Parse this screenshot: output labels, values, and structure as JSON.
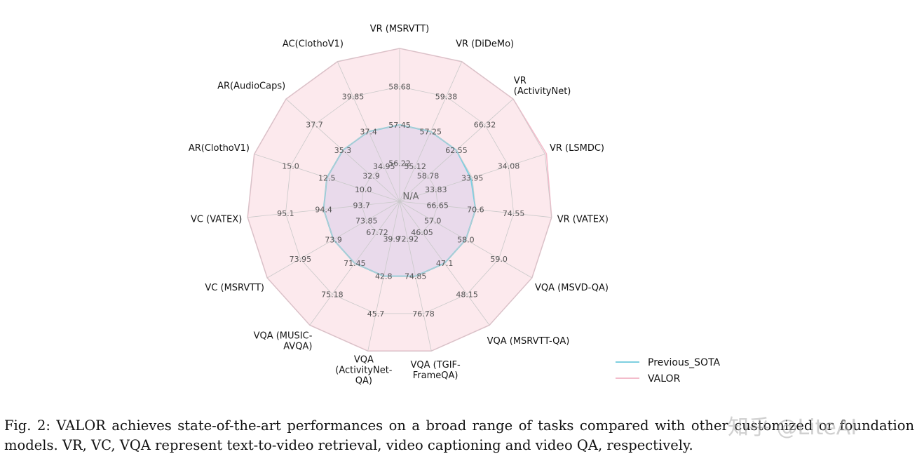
{
  "chart_data": {
    "type": "radar",
    "center_label": "N/A",
    "axes": [
      {
        "label": [
          "VR (MSRVTT)"
        ],
        "ticks": [
          "56.22",
          "57.45",
          "58.68"
        ]
      },
      {
        "label": [
          "VR (DiDeMo)"
        ],
        "ticks": [
          "55.12",
          "57.25",
          "59.38"
        ]
      },
      {
        "label": [
          "VR",
          "(ActivityNet)"
        ],
        "ticks": [
          "58.78",
          "62.55",
          "66.32"
        ]
      },
      {
        "label": [
          "VR (LSMDC)"
        ],
        "ticks": [
          "33.83",
          "33.95",
          "34.08"
        ]
      },
      {
        "label": [
          "VR (VATEX)"
        ],
        "ticks": [
          "66.65",
          "70.6",
          "74.55"
        ]
      },
      {
        "label": [
          "VQA (MSVD-QA)"
        ],
        "ticks": [
          "57.0",
          "58.0",
          "59.0"
        ]
      },
      {
        "label": [
          "VQA (MSRVTT-QA)"
        ],
        "ticks": [
          "46.05",
          "47.1",
          "48.15"
        ]
      },
      {
        "label": [
          "VQA (TGIF-",
          "FrameQA)"
        ],
        "ticks": [
          "72.92",
          "74.85",
          "76.78"
        ]
      },
      {
        "label": [
          "VQA",
          "(ActivityNet-",
          "QA)"
        ],
        "ticks": [
          "39.9",
          "42.8",
          "45.7"
        ]
      },
      {
        "label": [
          "VQA (MUSIC-",
          "AVQA)"
        ],
        "ticks": [
          "67.72",
          "71.45",
          "75.18"
        ]
      },
      {
        "label": [
          "VC (MSRVTT)"
        ],
        "ticks": [
          "73.85",
          "73.9",
          "73.95"
        ]
      },
      {
        "label": [
          "VC (VATEX)"
        ],
        "ticks": [
          "93.7",
          "94.4",
          "95.1"
        ]
      },
      {
        "label": [
          "AR(ClothoV1)"
        ],
        "ticks": [
          "10.0",
          "12.5",
          "15.0"
        ]
      },
      {
        "label": [
          "AR(AudioCaps)"
        ],
        "ticks": [
          "32.9",
          "35.3",
          "37.7"
        ]
      },
      {
        "label": [
          "AC(ClothoV1)"
        ],
        "ticks": [
          "34.95",
          "37.4",
          "39.85"
        ]
      }
    ],
    "series": [
      {
        "name": "Previous_SOTA",
        "color": "#7ecfe0",
        "fill": "rgba(150,150,230,0.18)",
        "values": [
          57.45,
          57.25,
          62.55,
          33.95,
          70.6,
          58.0,
          47.1,
          74.85,
          42.8,
          71.45,
          73.9,
          94.4,
          12.5,
          35.3,
          37.4
        ]
      },
      {
        "name": "VALOR",
        "color": "#f3bccb",
        "fill": "rgba(246,196,208,0.38)",
        "values": [
          59.91,
          61.51,
          70.09,
          34.21,
          78.5,
          60.0,
          49.2,
          78.71,
          48.6,
          78.91,
          74.0,
          95.8,
          17.5,
          40.1,
          42.3
        ]
      }
    ],
    "legend_position": "bottom-right",
    "grid": true
  },
  "caption": "Fig. 2: VALOR achieves state-of-the-art performances on a broad range of tasks compared with other customized or foundation models. VR, VC, VQA represent text-to-video retrieval, video captioning and video QA, respectively.",
  "watermark": "知乎 @LiteAI"
}
